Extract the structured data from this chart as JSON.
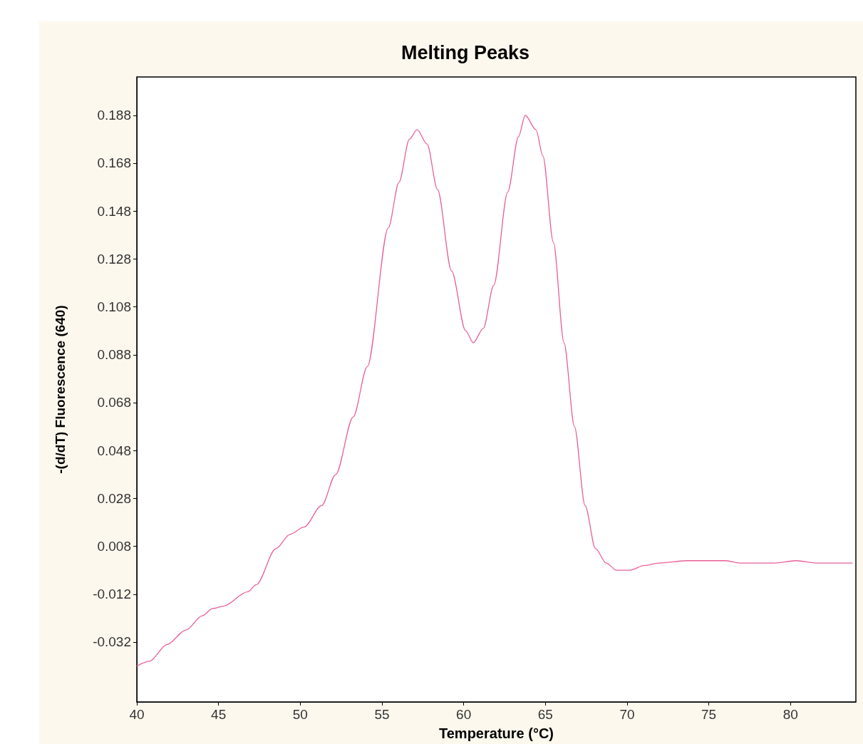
{
  "chart_data": {
    "type": "line",
    "title": "Melting Peaks",
    "xlabel": "Temperature (°C)",
    "ylabel": "-(d/dT) Fluorescence (640)",
    "series": [
      {
        "color": "#e8609a",
        "x": [
          40,
          40.77,
          41.85,
          43.0,
          44.0,
          44.64,
          45.29,
          46.79,
          47.31,
          48.51,
          49.37,
          50.23,
          51.31,
          52.17,
          53.24,
          54.1,
          55.39,
          56.04,
          56.68,
          57.15,
          57.76,
          58.4,
          59.26,
          60.12,
          60.59,
          61.2,
          61.84,
          62.7,
          63.35,
          63.77,
          64.42,
          64.85,
          65.49,
          66.14,
          66.78,
          67.43,
          68.07,
          68.72,
          69.36,
          70.14,
          71.08,
          71.94,
          73.66,
          74.74,
          76.03,
          76.89,
          79.04,
          80.33,
          81.62,
          83.8
        ],
        "values": [
          -0.042,
          -0.04,
          -0.033,
          -0.027,
          -0.021,
          -0.018,
          -0.017,
          -0.011,
          -0.008,
          0.007,
          0.013,
          0.016,
          0.025,
          0.038,
          0.062,
          0.083,
          0.141,
          0.16,
          0.178,
          0.182,
          0.176,
          0.157,
          0.123,
          0.098,
          0.093,
          0.099,
          0.117,
          0.156,
          0.179,
          0.188,
          0.182,
          0.171,
          0.135,
          0.093,
          0.058,
          0.025,
          0.007,
          0.001,
          -0.002,
          -0.002,
          0.0,
          0.001,
          0.002,
          0.002,
          0.002,
          0.001,
          0.001,
          0.002,
          0.001,
          0.001
        ]
      }
    ],
    "xlim": [
      40,
      84
    ],
    "xticks": [
      40,
      45,
      50,
      55,
      60,
      65,
      70,
      75,
      80
    ],
    "ylim": [
      -0.057,
      0.204
    ],
    "yticks": [
      -0.032,
      -0.012,
      0.008,
      0.028,
      0.048,
      0.068,
      0.088,
      0.108,
      0.128,
      0.148,
      0.168,
      0.188
    ],
    "grid": false,
    "marker": "none",
    "line_style": "solid"
  }
}
